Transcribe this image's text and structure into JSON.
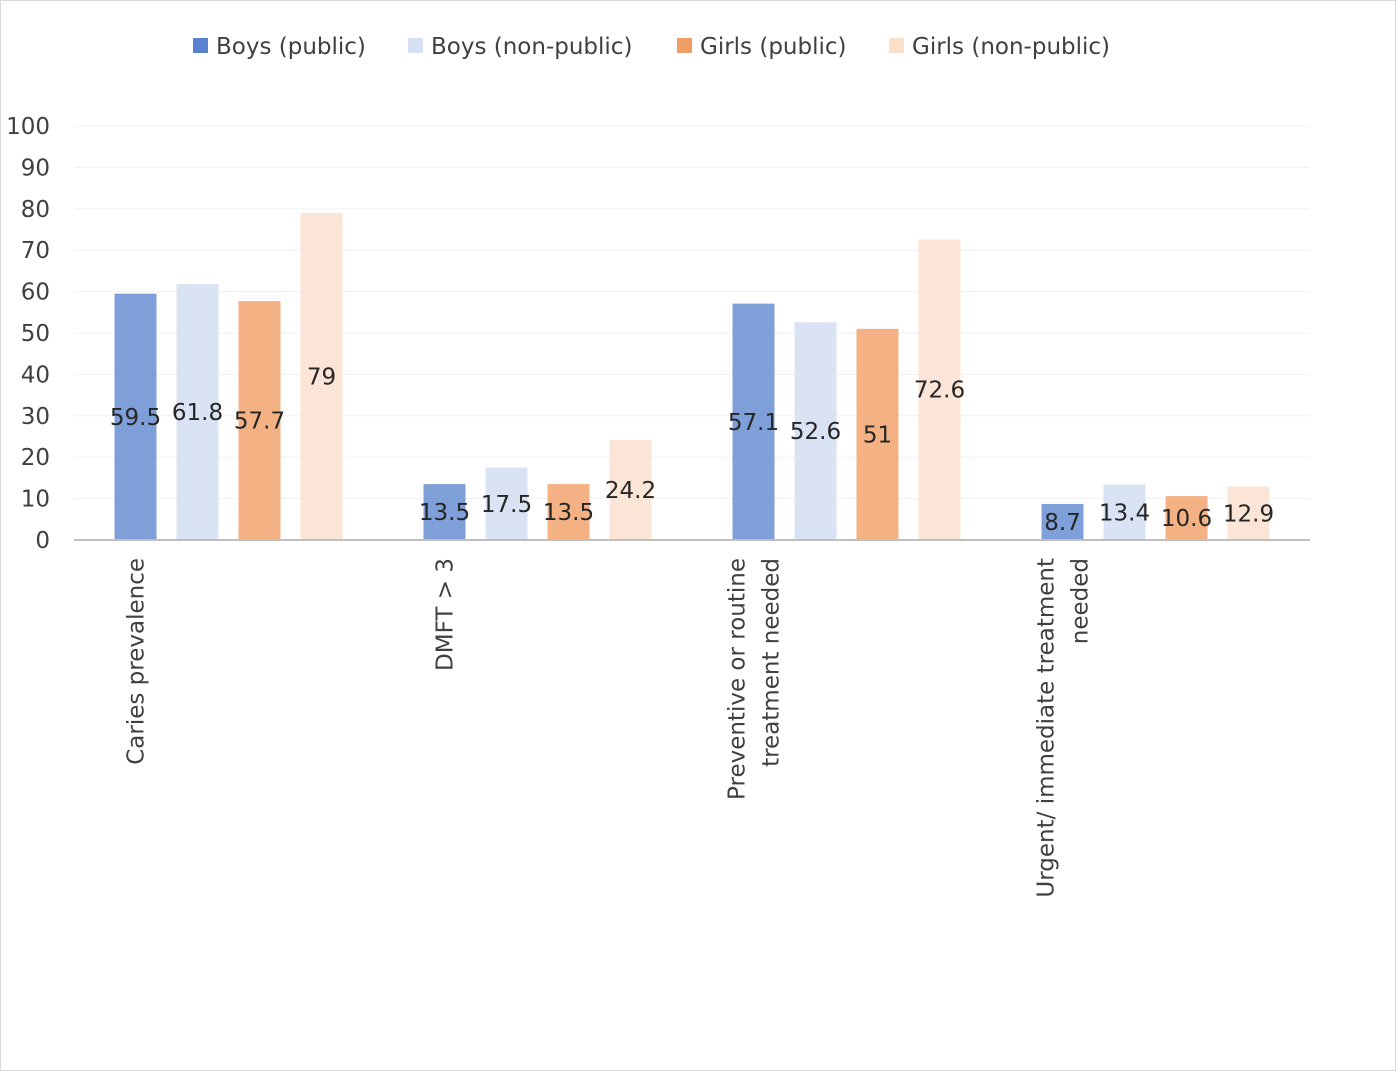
{
  "chart_data": {
    "type": "bar",
    "title": "",
    "xlabel": "",
    "ylabel": "",
    "ylim": [
      0,
      100
    ],
    "yticks": [
      0,
      10,
      20,
      30,
      40,
      50,
      60,
      70,
      80,
      90,
      100
    ],
    "grid": true,
    "legend_position": "top",
    "categories": [
      [
        "Caries prevalence"
      ],
      [
        "DMFT > 3"
      ],
      [
        "Preventive or routine",
        "treatment needed"
      ],
      [
        "Urgent/ immediate treatment",
        "needed"
      ]
    ],
    "series": [
      {
        "name": "Boys (public)",
        "color": "#7f9fd9",
        "legend_color": "#5b82d0",
        "values": [
          59.5,
          13.5,
          57.1,
          8.7
        ]
      },
      {
        "name": "Boys (non-public)",
        "color": "#dae3f3",
        "legend_color": "#d6e0f2",
        "values": [
          61.8,
          17.5,
          52.6,
          13.4
        ]
      },
      {
        "name": "Girls (public)",
        "color": "#f4b183",
        "legend_color": "#f19e66",
        "values": [
          57.7,
          13.5,
          51,
          10.6
        ]
      },
      {
        "name": "Girls (non-public)",
        "color": "#fbe5d6",
        "legend_color": "#fbe0cc",
        "values": [
          79,
          24.2,
          72.6,
          12.9
        ]
      }
    ]
  }
}
